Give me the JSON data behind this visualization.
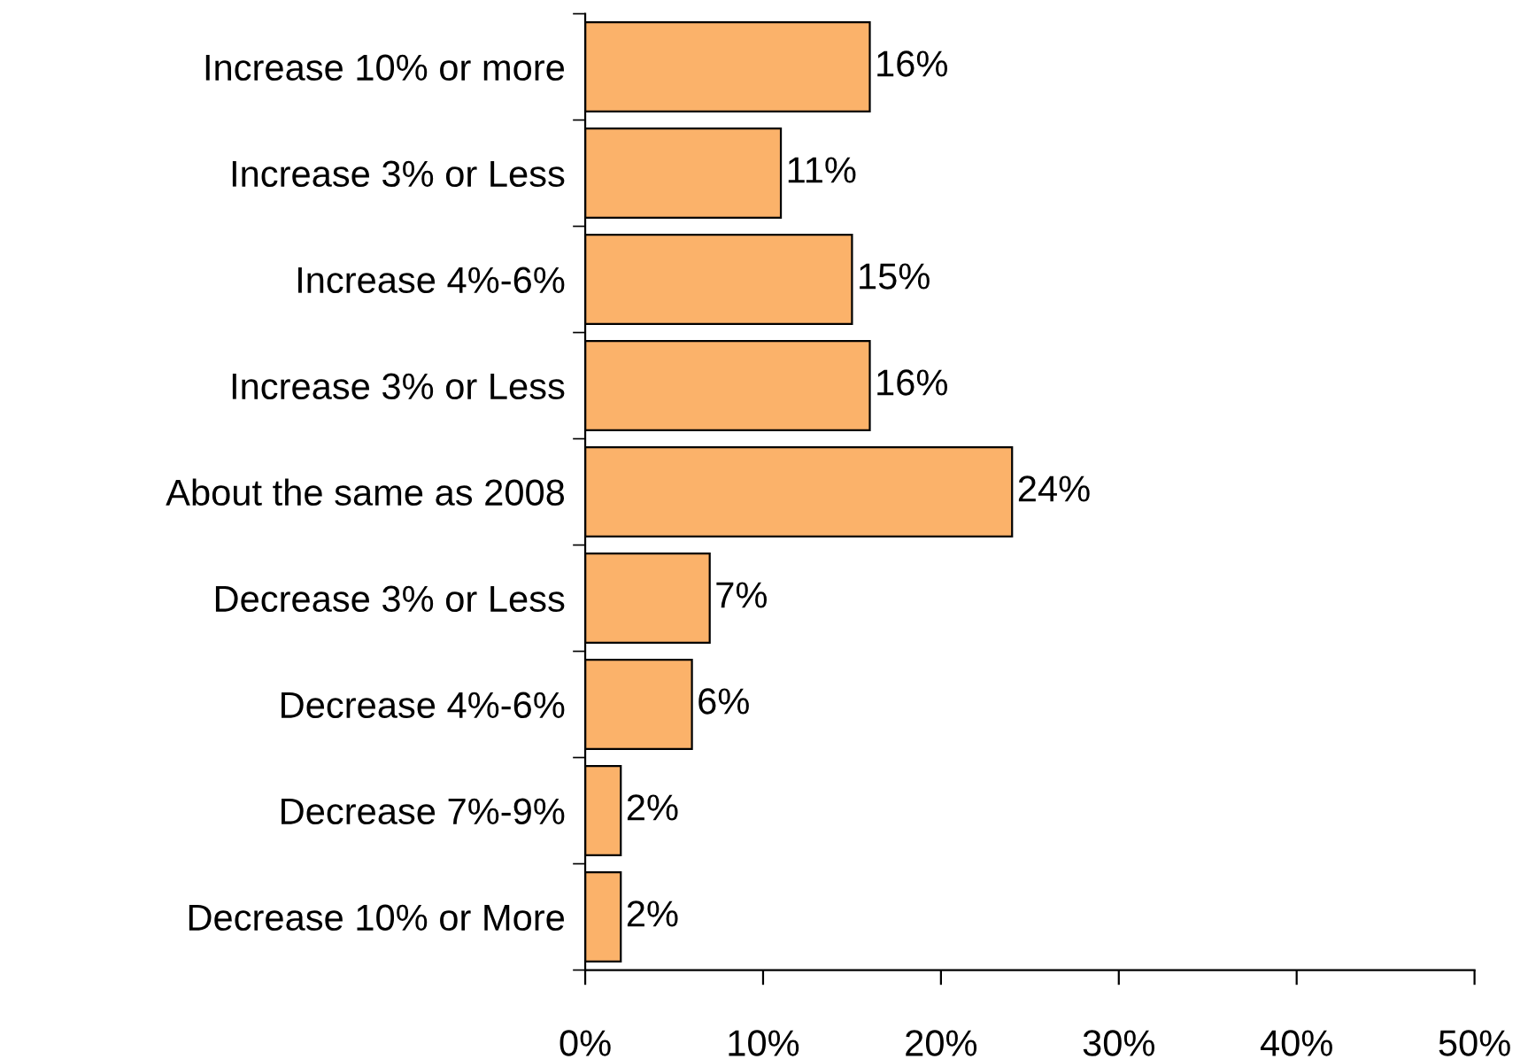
{
  "chart_data": {
    "type": "bar",
    "orientation": "horizontal",
    "categories": [
      "Increase 10% or more",
      "Increase 3% or Less",
      "Increase 4%-6%",
      "Increase 3% or Less",
      "About the same as 2008",
      "Decrease 3% or Less",
      "Decrease 4%-6%",
      "Decrease 7%-9%",
      "Decrease 10% or More"
    ],
    "values": [
      16,
      11,
      15,
      16,
      24,
      7,
      6,
      2,
      2
    ],
    "value_labels": [
      "16%",
      "11%",
      "15%",
      "16%",
      "24%",
      "7%",
      "6%",
      "2%",
      "2%"
    ],
    "color": "#fbb26a",
    "xlim": [
      0,
      50
    ],
    "xticks": [
      {
        "value": 0,
        "label": "0%"
      },
      {
        "value": 10,
        "label": "10%"
      },
      {
        "value": 20,
        "label": "20%"
      },
      {
        "value": 30,
        "label": "30%"
      },
      {
        "value": 40,
        "label": "40%"
      },
      {
        "value": 50,
        "label": "50%"
      }
    ],
    "grid": false,
    "legend": false
  }
}
